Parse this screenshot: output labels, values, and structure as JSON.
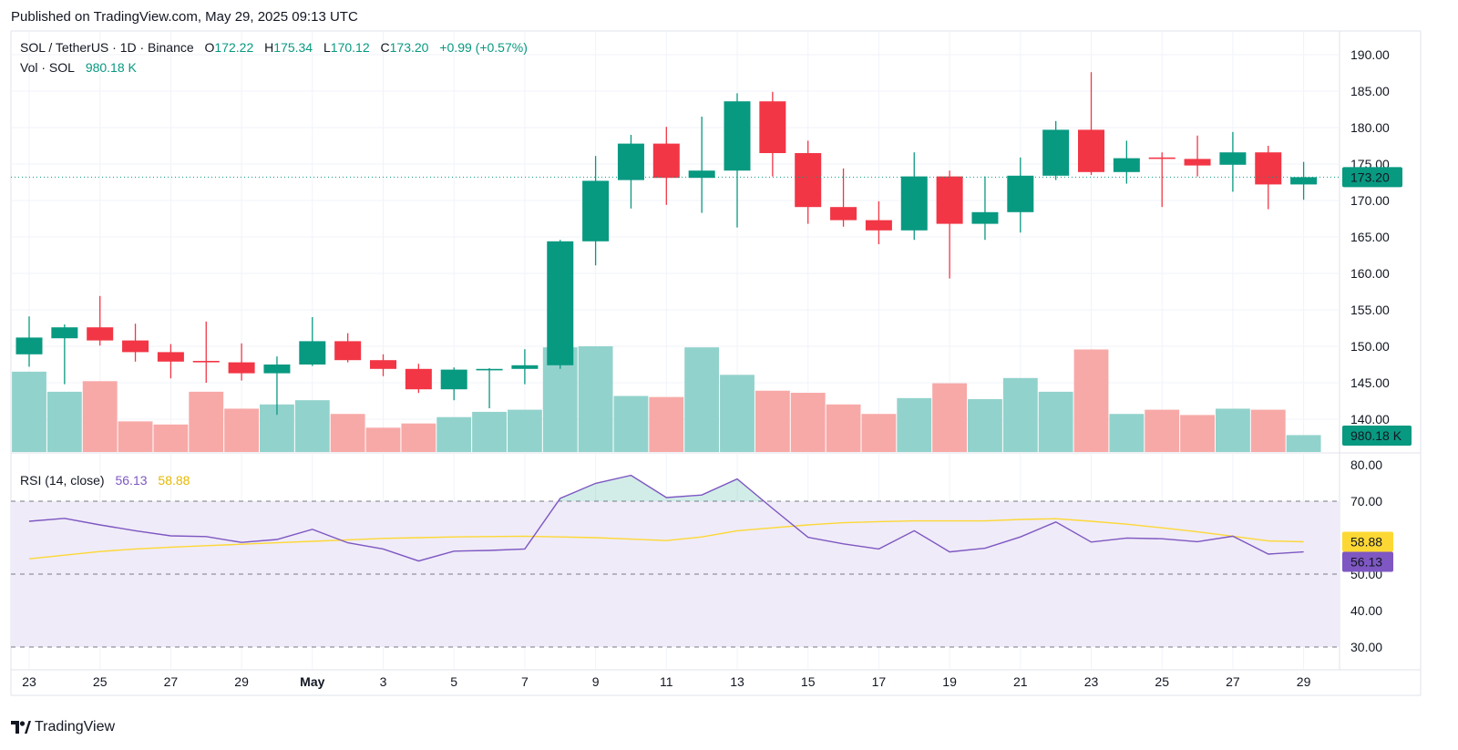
{
  "header": {
    "published": "Published on TradingView.com, May 29, 2025 09:13 UTC"
  },
  "legend": {
    "symbol": "SOL / TetherUS · 1D · Binance",
    "o_label": "O",
    "o_value": "172.22",
    "h_label": "H",
    "h_value": "175.34",
    "l_label": "L",
    "l_value": "170.12",
    "c_label": "C",
    "c_value": "173.20",
    "change": "+0.99 (+0.57%)",
    "vol_label": "Vol · SOL",
    "vol_value": "980.18 K"
  },
  "rsi_legend": {
    "label": "RSI (14, close)",
    "rsi_value": "56.13",
    "ma_value": "58.88"
  },
  "brand": {
    "name": "TradingView"
  },
  "colors": {
    "up": "#089981",
    "down": "#f23645",
    "up_vol": "#92d2cc",
    "down_vol": "#f7a9a7",
    "rsi": "#7e57c2",
    "rsi_ma": "#fdd835",
    "rsi_bg": "#efebf8"
  },
  "chart_data": [
    {
      "type": "candlestick",
      "title": "SOL / TetherUS · 1D · Binance",
      "price_axis_ticks": [
        "190.00",
        "185.00",
        "180.00",
        "175.00",
        "170.00",
        "165.00",
        "160.00",
        "155.00",
        "150.00",
        "145.00",
        "140.00"
      ],
      "ylim": [
        136,
        192
      ],
      "last_price_label": "173.20",
      "volume_label": "980.18 K",
      "x_ticks": [
        {
          "i": 0,
          "label": "23"
        },
        {
          "i": 2,
          "label": "25"
        },
        {
          "i": 4,
          "label": "27"
        },
        {
          "i": 6,
          "label": "29"
        },
        {
          "i": 8,
          "label": "May",
          "bold": true
        },
        {
          "i": 10,
          "label": "3"
        },
        {
          "i": 12,
          "label": "5"
        },
        {
          "i": 14,
          "label": "7"
        },
        {
          "i": 16,
          "label": "9"
        },
        {
          "i": 18,
          "label": "11"
        },
        {
          "i": 20,
          "label": "13"
        },
        {
          "i": 22,
          "label": "15"
        },
        {
          "i": 24,
          "label": "17"
        },
        {
          "i": 26,
          "label": "19"
        },
        {
          "i": 28,
          "label": "21"
        },
        {
          "i": 30,
          "label": "23"
        },
        {
          "i": 32,
          "label": "25"
        },
        {
          "i": 34,
          "label": "27"
        },
        {
          "i": 36,
          "label": "29"
        }
      ],
      "candles": [
        {
          "date": "Apr 23",
          "o": 148.9,
          "h": 154.1,
          "l": 147.2,
          "c": 151.2,
          "v": 0.76
        },
        {
          "date": "Apr 24",
          "o": 151.1,
          "h": 153.0,
          "l": 144.8,
          "c": 152.6,
          "v": 0.57
        },
        {
          "date": "Apr 25",
          "o": 152.6,
          "h": 156.9,
          "l": 150.1,
          "c": 150.8,
          "v": 0.67
        },
        {
          "date": "Apr 26",
          "o": 150.8,
          "h": 153.1,
          "l": 147.9,
          "c": 149.2,
          "v": 0.29
        },
        {
          "date": "Apr 27",
          "o": 149.2,
          "h": 150.3,
          "l": 145.6,
          "c": 147.9,
          "v": 0.26
        },
        {
          "date": "Apr 28",
          "o": 148.0,
          "h": 153.4,
          "l": 145.0,
          "c": 147.8,
          "v": 0.57
        },
        {
          "date": "Apr 29",
          "o": 147.8,
          "h": 150.4,
          "l": 145.3,
          "c": 146.3,
          "v": 0.41
        },
        {
          "date": "Apr 30",
          "o": 146.3,
          "h": 148.6,
          "l": 140.6,
          "c": 147.5,
          "v": 0.45
        },
        {
          "date": "May 1",
          "o": 147.5,
          "h": 154.0,
          "l": 147.3,
          "c": 150.7,
          "v": 0.49
        },
        {
          "date": "May 2",
          "o": 150.7,
          "h": 151.8,
          "l": 147.8,
          "c": 148.1,
          "v": 0.36
        },
        {
          "date": "May 3",
          "o": 148.1,
          "h": 148.9,
          "l": 145.9,
          "c": 146.9,
          "v": 0.23
        },
        {
          "date": "May 4",
          "o": 146.9,
          "h": 147.6,
          "l": 143.6,
          "c": 144.1,
          "v": 0.27
        },
        {
          "date": "May 5",
          "o": 144.1,
          "h": 147.1,
          "l": 142.6,
          "c": 146.8,
          "v": 0.33
        },
        {
          "date": "May 6",
          "o": 146.7,
          "h": 147.0,
          "l": 141.5,
          "c": 146.9,
          "v": 0.38
        },
        {
          "date": "May 7",
          "o": 146.9,
          "h": 149.6,
          "l": 144.8,
          "c": 147.4,
          "v": 0.4
        },
        {
          "date": "May 8",
          "o": 147.4,
          "h": 164.6,
          "l": 146.9,
          "c": 164.4,
          "v": 0.99
        },
        {
          "date": "May 9",
          "o": 164.4,
          "h": 176.1,
          "l": 161.1,
          "c": 172.7,
          "v": 1.0
        },
        {
          "date": "May 10",
          "o": 172.8,
          "h": 179.0,
          "l": 168.9,
          "c": 177.8,
          "v": 0.53
        },
        {
          "date": "May 11",
          "o": 177.8,
          "h": 180.1,
          "l": 169.4,
          "c": 173.1,
          "v": 0.52
        },
        {
          "date": "May 12",
          "o": 173.1,
          "h": 181.5,
          "l": 168.3,
          "c": 174.1,
          "v": 0.99
        },
        {
          "date": "May 13",
          "o": 174.1,
          "h": 184.7,
          "l": 166.3,
          "c": 183.6,
          "v": 0.73
        },
        {
          "date": "May 14",
          "o": 183.6,
          "h": 184.9,
          "l": 173.3,
          "c": 176.5,
          "v": 0.58
        },
        {
          "date": "May 15",
          "o": 176.5,
          "h": 178.2,
          "l": 166.8,
          "c": 169.1,
          "v": 0.56
        },
        {
          "date": "May 16",
          "o": 169.1,
          "h": 174.4,
          "l": 166.4,
          "c": 167.3,
          "v": 0.45
        },
        {
          "date": "May 17",
          "o": 167.3,
          "h": 169.9,
          "l": 164.0,
          "c": 165.9,
          "v": 0.36
        },
        {
          "date": "May 18",
          "o": 165.9,
          "h": 176.6,
          "l": 164.6,
          "c": 173.3,
          "v": 0.51
        },
        {
          "date": "May 19",
          "o": 173.3,
          "h": 174.1,
          "l": 159.3,
          "c": 166.8,
          "v": 0.65
        },
        {
          "date": "May 20",
          "o": 166.8,
          "h": 173.3,
          "l": 164.6,
          "c": 168.4,
          "v": 0.5
        },
        {
          "date": "May 21",
          "o": 168.4,
          "h": 175.9,
          "l": 165.6,
          "c": 173.4,
          "v": 0.7
        },
        {
          "date": "May 22",
          "o": 173.4,
          "h": 180.9,
          "l": 172.8,
          "c": 179.7,
          "v": 0.57
        },
        {
          "date": "May 23",
          "o": 179.7,
          "h": 187.6,
          "l": 173.5,
          "c": 173.9,
          "v": 0.97
        },
        {
          "date": "May 24",
          "o": 173.9,
          "h": 178.2,
          "l": 172.3,
          "c": 175.8,
          "v": 0.36
        },
        {
          "date": "May 25",
          "o": 175.9,
          "h": 176.6,
          "l": 169.1,
          "c": 175.7,
          "v": 0.4
        },
        {
          "date": "May 26",
          "o": 175.7,
          "h": 178.9,
          "l": 173.3,
          "c": 174.8,
          "v": 0.35
        },
        {
          "date": "May 27",
          "o": 174.9,
          "h": 179.4,
          "l": 171.2,
          "c": 176.6,
          "v": 0.41
        },
        {
          "date": "May 28",
          "o": 176.6,
          "h": 177.5,
          "l": 168.8,
          "c": 172.2,
          "v": 0.4
        },
        {
          "date": "May 29",
          "o": 172.2,
          "h": 175.3,
          "l": 170.1,
          "c": 173.2,
          "v": 0.16
        }
      ]
    },
    {
      "type": "line",
      "title": "RSI (14, close)",
      "yticks": [
        "80.00",
        "70.00",
        "60.00",
        "50.00",
        "40.00",
        "30.00"
      ],
      "ylim": [
        28.5,
        80.5
      ],
      "bands": [
        30,
        50,
        70
      ],
      "series": [
        {
          "name": "RSI",
          "color": "#7e57c2",
          "last_label": "56.13",
          "values": [
            64.5,
            65.3,
            63.5,
            61.9,
            60.5,
            60.3,
            58.7,
            59.5,
            62.3,
            58.6,
            56.9,
            53.6,
            56.3,
            56.5,
            56.9,
            70.8,
            74.9,
            77.1,
            71.0,
            71.7,
            76.1,
            68.0,
            60.1,
            58.3,
            56.9,
            61.9,
            56.1,
            57.1,
            60.2,
            64.3,
            58.8,
            59.9,
            59.7,
            58.9,
            60.4,
            55.5,
            56.1
          ]
        },
        {
          "name": "RSI-based MA",
          "color": "#fdd835",
          "last_label": "58.88",
          "values": [
            54.2,
            55.2,
            56.2,
            56.9,
            57.4,
            57.8,
            58.2,
            58.6,
            59.0,
            59.4,
            59.8,
            60.0,
            60.2,
            60.3,
            60.4,
            60.2,
            60.0,
            59.6,
            59.2,
            60.2,
            61.9,
            62.7,
            63.5,
            64.1,
            64.4,
            64.6,
            64.6,
            64.6,
            65.0,
            65.2,
            64.5,
            63.7,
            62.7,
            61.6,
            60.4,
            59.1,
            58.88
          ]
        }
      ]
    }
  ]
}
